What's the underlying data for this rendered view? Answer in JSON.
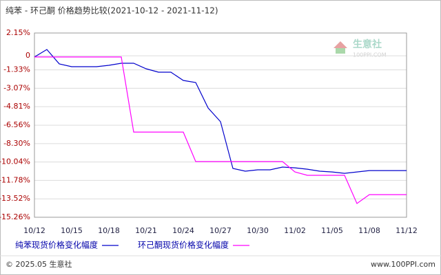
{
  "chart_data": {
    "type": "line",
    "title": "纯苯 - 环己酮 价格趋势比较(2021-10-12 - 2021-11-12)",
    "categories": [
      "10/12",
      null,
      null,
      "10/15",
      null,
      null,
      "10/18",
      null,
      null,
      "10/21",
      null,
      null,
      "10/24",
      null,
      null,
      "10/27",
      null,
      null,
      "10/30",
      null,
      null,
      "11/02",
      null,
      null,
      "11/05",
      null,
      null,
      "11/08",
      null,
      null,
      "11/12"
    ],
    "series": [
      {
        "name": "纯苯现货价格变化幅度",
        "color": "#0000cc",
        "values": [
          -0.12,
          0.59,
          -0.77,
          -1.03,
          -1.03,
          -1.03,
          -0.9,
          -0.71,
          -0.71,
          -1.23,
          -1.55,
          -1.55,
          -2.33,
          -2.53,
          -4.93,
          -6.23,
          -10.65,
          -10.91,
          -10.78,
          -10.78,
          -10.52,
          -10.59,
          -10.72,
          -10.91,
          -10.98,
          -11.11,
          -10.98,
          -10.85,
          -10.85,
          -10.85,
          -10.85
        ]
      },
      {
        "name": "环己酮现货价格变化幅度",
        "color": "#ff00ff",
        "values": [
          -0.12,
          -0.12,
          -0.12,
          -0.12,
          -0.12,
          -0.12,
          -0.12,
          -0.12,
          -7.21,
          -7.21,
          -7.21,
          -7.21,
          -7.21,
          -10.0,
          -10.0,
          -10.0,
          -10.0,
          -10.0,
          -10.0,
          -10.0,
          -10.0,
          -10.98,
          -11.3,
          -11.3,
          -11.3,
          -11.3,
          -13.96,
          -13.12,
          -13.12,
          -13.12,
          -13.12
        ]
      }
    ],
    "ylim": [
      -15.26,
      2.15
    ],
    "yticks": [
      {
        "value": 2.15,
        "label": "2.15%"
      },
      0,
      {
        "value": -1.33,
        "label": "-1.33%"
      },
      {
        "value": -3.07,
        "label": "-3.07%"
      },
      {
        "value": -4.81,
        "label": "-4.81%"
      },
      {
        "value": -6.56,
        "label": "-6.56%"
      },
      {
        "value": -8.3,
        "label": "-8.30%"
      },
      {
        "value": -10.04,
        "label": "-10.04%"
      },
      {
        "value": -11.78,
        "label": "-11.78%"
      },
      {
        "value": -13.52,
        "label": "-13.52%"
      },
      {
        "value": -15.26,
        "label": "-15.26%"
      }
    ],
    "grid": true,
    "watermark": {
      "name": "生意社",
      "site": "100PPI.COM"
    },
    "footer": {
      "copyright": "© 2025.05 生意社",
      "url": "www.100PPI.com"
    }
  }
}
